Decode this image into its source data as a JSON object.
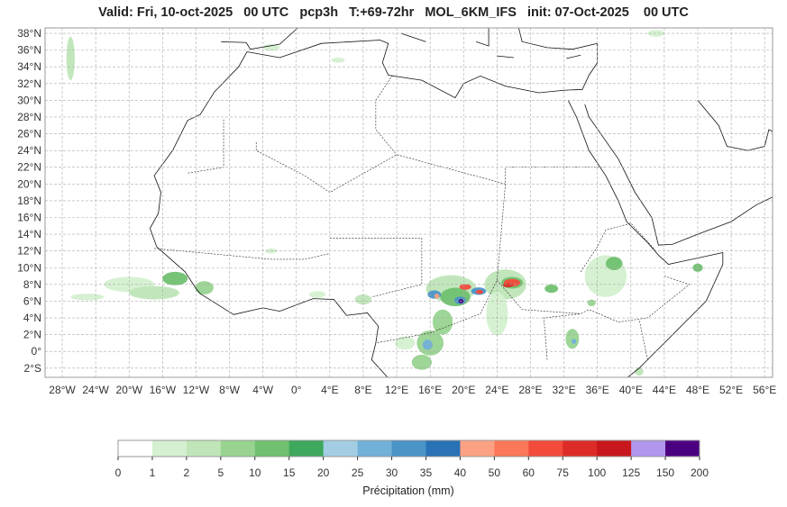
{
  "title": "Valid: Fri, 10-oct-2025   00 UTC   pcp3h   T:+69-72hr   MOL_6KM_IFS   init: 07-Oct-2025    00 UTC",
  "extent": {
    "lon": [
      -30.05,
      56.95
    ],
    "lat": [
      -3.1,
      38.65
    ]
  },
  "lat_ticks": [
    {
      "v": -2,
      "label": "2°S"
    },
    {
      "v": 0,
      "label": "0°"
    },
    {
      "v": 2,
      "label": "2°N"
    },
    {
      "v": 4,
      "label": "4°N"
    },
    {
      "v": 6,
      "label": "6°N"
    },
    {
      "v": 8,
      "label": "8°N"
    },
    {
      "v": 10,
      "label": "10°N"
    },
    {
      "v": 12,
      "label": "12°N"
    },
    {
      "v": 14,
      "label": "14°N"
    },
    {
      "v": 16,
      "label": "16°N"
    },
    {
      "v": 18,
      "label": "18°N"
    },
    {
      "v": 20,
      "label": "20°N"
    },
    {
      "v": 22,
      "label": "22°N"
    },
    {
      "v": 24,
      "label": "24°N"
    },
    {
      "v": 26,
      "label": "26°N"
    },
    {
      "v": 28,
      "label": "28°N"
    },
    {
      "v": 30,
      "label": "30°N"
    },
    {
      "v": 32,
      "label": "32°N"
    },
    {
      "v": 34,
      "label": "34°N"
    },
    {
      "v": 36,
      "label": "36°N"
    },
    {
      "v": 38,
      "label": "38°N"
    }
  ],
  "lon_ticks": [
    {
      "v": -28,
      "label": "28°W"
    },
    {
      "v": -24,
      "label": "24°W"
    },
    {
      "v": -20,
      "label": "20°W"
    },
    {
      "v": -16,
      "label": "16°W"
    },
    {
      "v": -12,
      "label": "12°W"
    },
    {
      "v": -8,
      "label": "8°W"
    },
    {
      "v": -4,
      "label": "4°W"
    },
    {
      "v": 0,
      "label": "0°"
    },
    {
      "v": 4,
      "label": "4°E"
    },
    {
      "v": 8,
      "label": "8°E"
    },
    {
      "v": 12,
      "label": "12°E"
    },
    {
      "v": 16,
      "label": "16°E"
    },
    {
      "v": 20,
      "label": "20°E"
    },
    {
      "v": 24,
      "label": "24°E"
    },
    {
      "v": 28,
      "label": "28°E"
    },
    {
      "v": 32,
      "label": "32°E"
    },
    {
      "v": 36,
      "label": "36°E"
    },
    {
      "v": 40,
      "label": "40°E"
    },
    {
      "v": 44,
      "label": "44°E"
    },
    {
      "v": 48,
      "label": "48°E"
    },
    {
      "v": 52,
      "label": "52°E"
    },
    {
      "v": 56,
      "label": "56°E"
    }
  ],
  "colorbar": {
    "label": "Précipitation (mm)",
    "levels": [
      "0",
      "1",
      "2",
      "5",
      "10",
      "15",
      "20",
      "25",
      "30",
      "35",
      "40",
      "50",
      "60",
      "75",
      "100",
      "125",
      "150",
      "200"
    ],
    "bounds": [
      0,
      1,
      2,
      5,
      10,
      15,
      20,
      25,
      30,
      35,
      40,
      50,
      60,
      75,
      100,
      125,
      150,
      200
    ],
    "colors": [
      "#ffffff",
      "#d4f0d0",
      "#bfe5b8",
      "#98d490",
      "#70c070",
      "#3ea85c",
      "#a3cde3",
      "#72b1d8",
      "#4a94c8",
      "#2872b5",
      "#fca183",
      "#fc7858",
      "#f24b3a",
      "#dd2b27",
      "#c8171c",
      "#b096ec",
      "#4b0080"
    ]
  },
  "precip_cells": [
    {
      "lon": 18.5,
      "lat": 7.5,
      "rx": 3,
      "ry": 1.6,
      "mm": 3
    },
    {
      "lon": 19,
      "lat": 6.5,
      "rx": 1.8,
      "ry": 1.1,
      "mm": 12
    },
    {
      "lon": 16.5,
      "lat": 6.8,
      "rx": 0.8,
      "ry": 0.5,
      "mm": 32
    },
    {
      "lon": 16.8,
      "lat": 6.6,
      "rx": 0.3,
      "ry": 0.3,
      "mm": 45
    },
    {
      "lon": 19.6,
      "lat": 6.1,
      "rx": 0.7,
      "ry": 0.45,
      "mm": 32
    },
    {
      "lon": 19.7,
      "lat": 6.0,
      "rx": 0.3,
      "ry": 0.25,
      "mm": 160
    },
    {
      "lon": 20.2,
      "lat": 7.7,
      "rx": 0.7,
      "ry": 0.35,
      "mm": 65
    },
    {
      "lon": 21.8,
      "lat": 7.2,
      "rx": 0.9,
      "ry": 0.45,
      "mm": 32
    },
    {
      "lon": 21.9,
      "lat": 7.1,
      "rx": 0.45,
      "ry": 0.25,
      "mm": 65
    },
    {
      "lon": 25,
      "lat": 8,
      "rx": 2.5,
      "ry": 1.8,
      "mm": 3
    },
    {
      "lon": 25.8,
      "lat": 8.2,
      "rx": 1.3,
      "ry": 0.7,
      "mm": 12
    },
    {
      "lon": 25.8,
      "lat": 8.2,
      "rx": 1.0,
      "ry": 0.45,
      "mm": 65
    },
    {
      "lon": 25.3,
      "lat": 7.9,
      "rx": 0.6,
      "ry": 0.25,
      "mm": 80
    },
    {
      "lon": 24,
      "lat": 4.5,
      "rx": 1.3,
      "ry": 2.6,
      "mm": 1.5
    },
    {
      "lon": 17.5,
      "lat": 3.5,
      "rx": 1.2,
      "ry": 1.5,
      "mm": 6
    },
    {
      "lon": 16,
      "lat": 1,
      "rx": 1.6,
      "ry": 1.5,
      "mm": 6
    },
    {
      "lon": 15.7,
      "lat": 0.8,
      "rx": 0.6,
      "ry": 0.6,
      "mm": 28
    },
    {
      "lon": 15,
      "lat": -1.3,
      "rx": 1.2,
      "ry": 0.9,
      "mm": 6
    },
    {
      "lon": 13,
      "lat": 1,
      "rx": 1.2,
      "ry": 0.8,
      "mm": 1.5
    },
    {
      "lon": 37,
      "lat": 9,
      "rx": 2.5,
      "ry": 2.5,
      "mm": 1.5
    },
    {
      "lon": 38,
      "lat": 10.5,
      "rx": 1,
      "ry": 0.8,
      "mm": 12
    },
    {
      "lon": 33,
      "lat": 1.5,
      "rx": 0.8,
      "ry": 1.2,
      "mm": 6
    },
    {
      "lon": 33.2,
      "lat": 1.2,
      "rx": 0.3,
      "ry": 0.3,
      "mm": 28
    },
    {
      "lon": 30.5,
      "lat": 7.5,
      "rx": 0.8,
      "ry": 0.5,
      "mm": 12
    },
    {
      "lon": 48,
      "lat": 10,
      "rx": 0.6,
      "ry": 0.5,
      "mm": 12
    },
    {
      "lon": 35.3,
      "lat": 5.8,
      "rx": 0.5,
      "ry": 0.4,
      "mm": 6
    },
    {
      "lon": -14.5,
      "lat": 8.7,
      "rx": 1.5,
      "ry": 0.8,
      "mm": 12
    },
    {
      "lon": -20,
      "lat": 8,
      "rx": 3,
      "ry": 0.9,
      "mm": 1.5
    },
    {
      "lon": -25,
      "lat": 6.5,
      "rx": 2,
      "ry": 0.4,
      "mm": 1.5
    },
    {
      "lon": -17,
      "lat": 7,
      "rx": 3,
      "ry": 0.8,
      "mm": 3
    },
    {
      "lon": -11,
      "lat": 7.6,
      "rx": 1.1,
      "ry": 0.8,
      "mm": 6
    },
    {
      "lon": -3,
      "lat": 12,
      "rx": 0.7,
      "ry": 0.3,
      "mm": 1.5
    },
    {
      "lon": 2.5,
      "lat": 6.8,
      "rx": 1,
      "ry": 0.4,
      "mm": 1.5
    },
    {
      "lon": 8,
      "lat": 6.2,
      "rx": 1,
      "ry": 0.6,
      "mm": 3
    },
    {
      "lon": -27,
      "lat": 35,
      "rx": 0.5,
      "ry": 2.6,
      "mm": 3
    },
    {
      "lon": -3,
      "lat": 36.3,
      "rx": 1,
      "ry": 0.4,
      "mm": 1.5
    },
    {
      "lon": 5,
      "lat": 34.8,
      "rx": 0.8,
      "ry": 0.3,
      "mm": 1.5
    },
    {
      "lon": 43,
      "lat": 38,
      "rx": 1,
      "ry": 0.4,
      "mm": 1.5
    },
    {
      "lon": 41,
      "lat": -2.4,
      "rx": 0.5,
      "ry": 0.5,
      "mm": 3
    }
  ]
}
